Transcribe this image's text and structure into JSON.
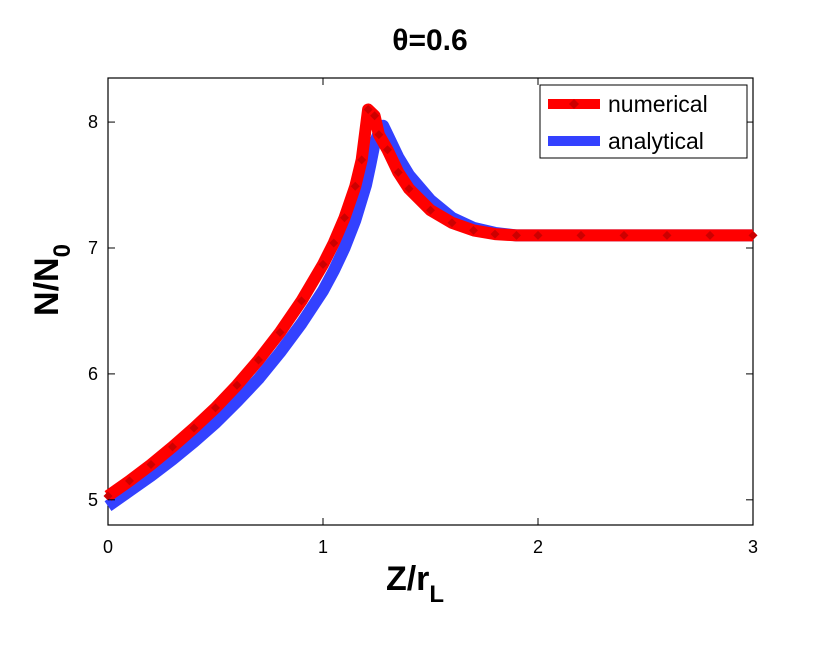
{
  "chart_data": {
    "type": "line",
    "title": "θ=0.6",
    "xlabel": {
      "main": "Z/r",
      "sub": "L"
    },
    "ylabel": {
      "main": "N/N",
      "sub": "0"
    },
    "xlim": [
      0,
      3
    ],
    "ylim": [
      4.8,
      8.35
    ],
    "xticks": [
      0,
      1,
      2,
      3
    ],
    "yticks": [
      5,
      6,
      7,
      8
    ],
    "xtick_labels": [
      "0",
      "1",
      "2",
      "3"
    ],
    "ytick_labels": [
      "5",
      "6",
      "7",
      "8"
    ],
    "grid": false,
    "legend_position": "top-right",
    "series": [
      {
        "name": "numerical",
        "color": "#ff0000",
        "marker": "diamond",
        "x": [
          0.0,
          0.1,
          0.2,
          0.3,
          0.4,
          0.5,
          0.6,
          0.7,
          0.8,
          0.9,
          1.0,
          1.05,
          1.1,
          1.15,
          1.18,
          1.21,
          1.24,
          1.26,
          1.3,
          1.35,
          1.4,
          1.5,
          1.6,
          1.7,
          1.8,
          1.9,
          2.0,
          2.2,
          2.4,
          2.6,
          2.8,
          3.0
        ],
        "y": [
          5.03,
          5.15,
          5.28,
          5.42,
          5.57,
          5.73,
          5.91,
          6.11,
          6.33,
          6.58,
          6.87,
          7.04,
          7.24,
          7.49,
          7.7,
          8.1,
          8.05,
          7.9,
          7.78,
          7.6,
          7.47,
          7.3,
          7.2,
          7.14,
          7.11,
          7.1,
          7.1,
          7.1,
          7.1,
          7.1,
          7.1,
          7.1
        ]
      },
      {
        "name": "analytical",
        "color": "#3341ff",
        "marker": "none",
        "x": [
          0.0,
          0.1,
          0.2,
          0.3,
          0.4,
          0.5,
          0.6,
          0.7,
          0.8,
          0.9,
          1.0,
          1.05,
          1.1,
          1.15,
          1.2,
          1.22,
          1.24,
          1.26,
          1.28,
          1.3,
          1.35,
          1.4,
          1.5,
          1.6,
          1.7,
          1.8,
          1.9,
          2.0,
          2.2,
          2.4,
          2.6,
          2.8,
          3.0
        ],
        "y": [
          4.95,
          5.07,
          5.19,
          5.32,
          5.46,
          5.61,
          5.78,
          5.96,
          6.17,
          6.4,
          6.66,
          6.82,
          7.0,
          7.22,
          7.5,
          7.66,
          7.83,
          7.92,
          7.97,
          7.9,
          7.72,
          7.58,
          7.38,
          7.24,
          7.16,
          7.12,
          7.1,
          7.1,
          7.1,
          7.1,
          7.1,
          7.1,
          7.1
        ]
      }
    ]
  }
}
